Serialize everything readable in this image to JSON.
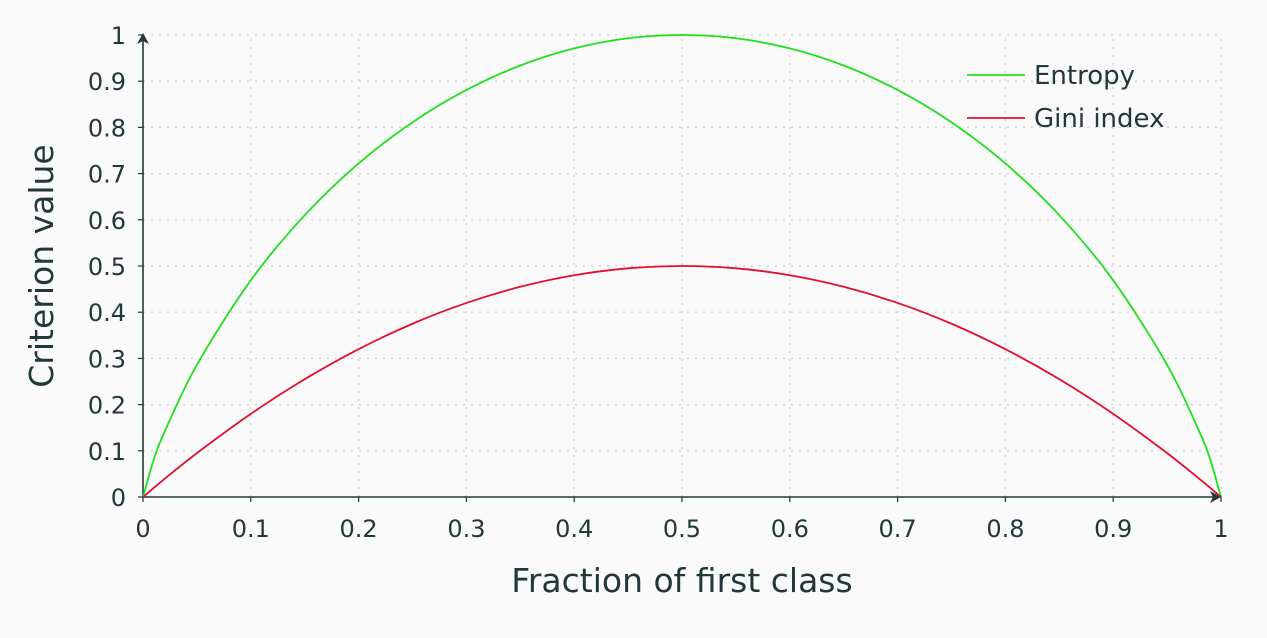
{
  "chart_data": {
    "type": "line",
    "title": "",
    "xlabel": "Fraction of first class",
    "ylabel": "Criterion value",
    "xlim": [
      0,
      1
    ],
    "ylim": [
      0,
      1
    ],
    "xticks": [
      "0",
      "0.1",
      "0.2",
      "0.3",
      "0.4",
      "0.5",
      "0.6",
      "0.7",
      "0.8",
      "0.9",
      "1"
    ],
    "yticks": [
      "0",
      "0.1",
      "0.2",
      "0.3",
      "0.4",
      "0.5",
      "0.6",
      "0.7",
      "0.8",
      "0.9",
      "1"
    ],
    "grid": true,
    "legend_position": "top-right",
    "x": [
      0,
      0.01,
      0.02,
      0.05,
      0.1,
      0.15,
      0.2,
      0.25,
      0.3,
      0.35,
      0.4,
      0.45,
      0.5,
      0.55,
      0.6,
      0.65,
      0.7,
      0.75,
      0.8,
      0.85,
      0.9,
      0.95,
      0.98,
      0.99,
      1
    ],
    "series": [
      {
        "name": "Entropy",
        "color": "#1fe01f",
        "values": [
          0,
          0.081,
          0.141,
          0.286,
          0.469,
          0.61,
          0.722,
          0.811,
          0.881,
          0.934,
          0.971,
          0.993,
          1,
          0.993,
          0.971,
          0.934,
          0.881,
          0.811,
          0.722,
          0.61,
          0.469,
          0.286,
          0.141,
          0.081,
          0
        ]
      },
      {
        "name": "Gini index",
        "color": "#e0102f",
        "values": [
          0,
          0.0198,
          0.0392,
          0.095,
          0.18,
          0.255,
          0.32,
          0.375,
          0.42,
          0.455,
          0.48,
          0.495,
          0.5,
          0.495,
          0.48,
          0.455,
          0.42,
          0.375,
          0.32,
          0.255,
          0.18,
          0.095,
          0.0392,
          0.0198,
          0
        ]
      }
    ]
  }
}
